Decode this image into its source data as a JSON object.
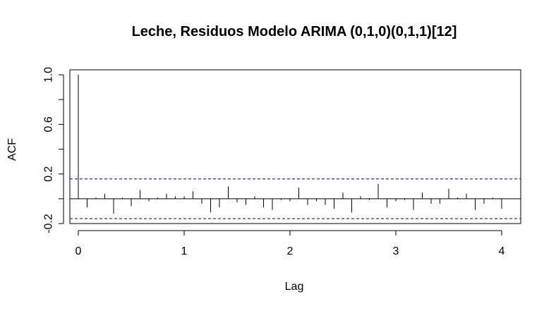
{
  "chart_data": {
    "type": "bar",
    "title": "Leche, Residuos Modelo ARIMA (0,1,0)(0,1,1)[12]",
    "xlabel": "Lag",
    "ylabel": "ACF",
    "xlim": [
      -0.08,
      4.18
    ],
    "ylim": [
      -0.2,
      1.04
    ],
    "x_ticks": [
      "0",
      "1",
      "2",
      "3",
      "4"
    ],
    "y_ticks": [
      "-0.2",
      "0.2",
      "0.6",
      "1.0"
    ],
    "confidence_limit": 0.16,
    "lag_step": 0.0833333,
    "acf": [
      1.0,
      -0.07,
      0.01,
      0.04,
      -0.12,
      0.01,
      -0.06,
      0.07,
      -0.02,
      0.01,
      0.04,
      0.02,
      0.02,
      0.06,
      -0.04,
      -0.11,
      -0.07,
      0.1,
      -0.03,
      -0.05,
      0.02,
      -0.07,
      -0.09,
      -0.01,
      -0.02,
      0.09,
      -0.05,
      -0.02,
      -0.05,
      -0.08,
      0.05,
      -0.11,
      0.02,
      -0.01,
      0.12,
      -0.07,
      -0.02,
      -0.01,
      -0.09,
      0.05,
      -0.04,
      -0.04,
      0.08,
      0.01,
      0.04,
      -0.09,
      -0.04,
      0.01,
      -0.08
    ],
    "colors": {
      "bars": "#000000",
      "confidence": "#00008b",
      "axis": "#000000"
    }
  }
}
